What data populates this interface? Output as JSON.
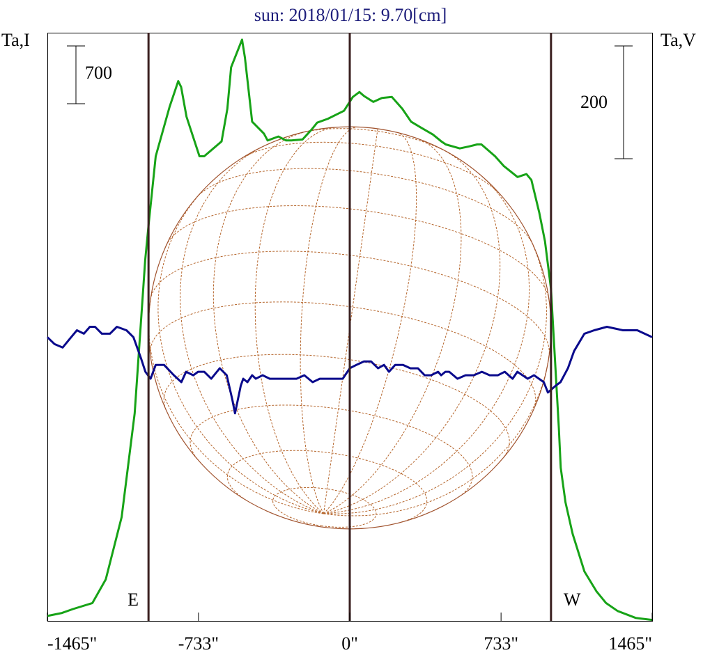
{
  "chart_data": {
    "type": "line",
    "title": "sun: 2018/01/15: 9.70[cm]",
    "left_axis_label": "Ta,I",
    "right_axis_label": "Ta,V",
    "left_scale_bar": {
      "label": "700",
      "value": 700
    },
    "right_scale_bar": {
      "label": "200",
      "value": 200
    },
    "xlim": [
      -1465,
      1465
    ],
    "x_ticks": [
      {
        "value": -1465,
        "label": "-1465\""
      },
      {
        "value": -733,
        "label": "-733\""
      },
      {
        "value": 0,
        "label": "0\""
      },
      {
        "value": 733,
        "label": "733\""
      },
      {
        "value": 1465,
        "label": "1465\""
      }
    ],
    "limb_markers": [
      {
        "x": -975,
        "label": "E"
      },
      {
        "x": 0,
        "label": ""
      },
      {
        "x": 975,
        "label": "W"
      }
    ],
    "disk": {
      "center_x": 0,
      "radius_arcsec": 975,
      "grid": true
    },
    "ylim_I": [
      0,
      5950
    ],
    "ylim_V": [
      -420,
      1280
    ],
    "series": [
      {
        "name": "Ta,I",
        "color": "#17a317",
        "x": [
          -1465,
          -1394,
          -1341,
          -1247,
          -1182,
          -1105,
          -1042,
          -991,
          -975,
          -940,
          -873,
          -831,
          -817,
          -791,
          -728,
          -705,
          -621,
          -593,
          -575,
          -522,
          -508,
          -473,
          -416,
          -398,
          -346,
          -309,
          -283,
          -229,
          -185,
          -158,
          -106,
          -28,
          15,
          47,
          69,
          114,
          156,
          204,
          255,
          297,
          345,
          403,
          444,
          465,
          533,
          579,
          617,
          638,
          704,
          747,
          813,
          856,
          880,
          918,
          946,
          975,
          1013,
          1022,
          1045,
          1080,
          1137,
          1195,
          1242,
          1298,
          1385,
          1465
        ],
        "y": [
          50,
          80,
          120,
          180,
          420,
          1050,
          2100,
          3650,
          4000,
          4700,
          5200,
          5460,
          5400,
          5100,
          4700,
          4700,
          4850,
          5180,
          5600,
          5880,
          5700,
          5050,
          4930,
          4860,
          4900,
          4860,
          4860,
          4870,
          4970,
          5040,
          5080,
          5160,
          5300,
          5350,
          5310,
          5250,
          5290,
          5300,
          5180,
          5050,
          4990,
          4920,
          4850,
          4820,
          4780,
          4800,
          4820,
          4820,
          4700,
          4600,
          4490,
          4520,
          4460,
          4130,
          3840,
          3360,
          1950,
          1550,
          1200,
          880,
          500,
          300,
          180,
          100,
          30,
          10
        ]
      },
      {
        "name": "Ta,V",
        "color": "#0a0a8c",
        "x": [
          -1465,
          -1430,
          -1391,
          -1350,
          -1322,
          -1288,
          -1259,
          -1234,
          -1201,
          -1162,
          -1128,
          -1082,
          -1048,
          -1012,
          -990,
          -965,
          -940,
          -900,
          -852,
          -816,
          -793,
          -758,
          -735,
          -705,
          -671,
          -630,
          -596,
          -569,
          -556,
          -528,
          -516,
          -496,
          -473,
          -455,
          -422,
          -388,
          -344,
          -301,
          -258,
          -220,
          -180,
          -145,
          -108,
          -72,
          -34,
          0,
          32,
          69,
          103,
          137,
          166,
          190,
          220,
          258,
          294,
          330,
          363,
          394,
          428,
          443,
          463,
          482,
          522,
          561,
          601,
          640,
          678,
          718,
          751,
          789,
          812,
          862,
          893,
          940,
          960,
          998,
          1021,
          1057,
          1087,
          1137,
          1184,
          1246,
          1324,
          1393,
          1465
        ],
        "y": [
          400,
          380,
          370,
          400,
          420,
          410,
          430,
          430,
          410,
          410,
          430,
          420,
          400,
          340,
          300,
          280,
          320,
          320,
          290,
          270,
          300,
          290,
          300,
          300,
          280,
          310,
          290,
          220,
          180,
          260,
          280,
          270,
          290,
          280,
          290,
          280,
          280,
          280,
          280,
          290,
          270,
          280,
          280,
          280,
          280,
          310,
          320,
          330,
          330,
          310,
          320,
          300,
          320,
          320,
          310,
          310,
          290,
          290,
          300,
          290,
          300,
          300,
          280,
          290,
          290,
          300,
          290,
          290,
          300,
          280,
          300,
          280,
          290,
          270,
          240,
          260,
          270,
          310,
          360,
          410,
          420,
          430,
          420,
          420,
          400
        ]
      }
    ]
  }
}
